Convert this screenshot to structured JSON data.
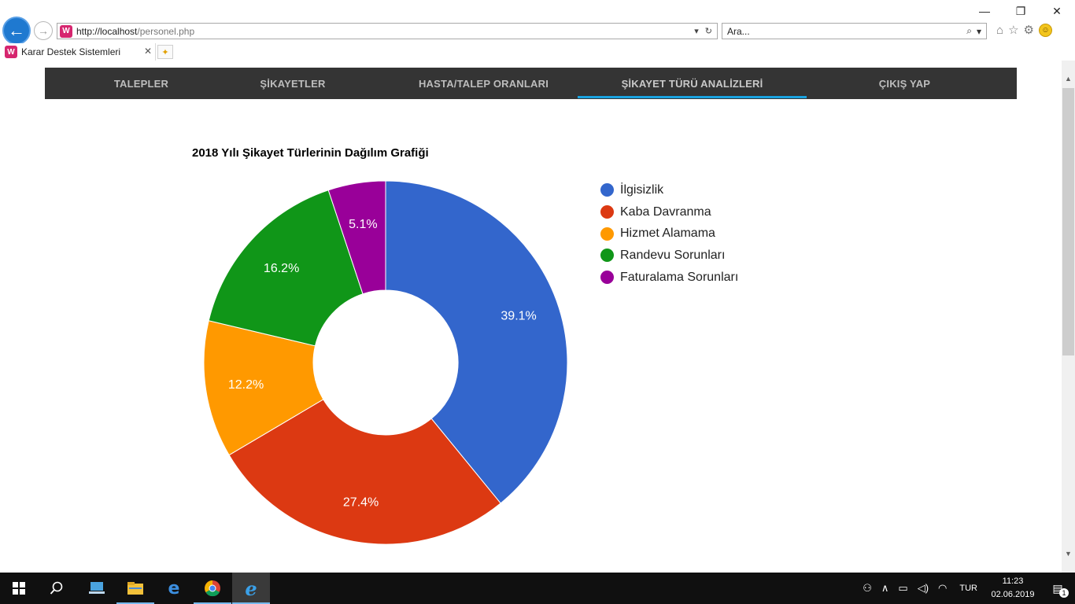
{
  "browser": {
    "address": {
      "host": "http://localhost",
      "path": "/personel.php",
      "favicon": "W"
    },
    "search": {
      "placeholder": "Ara..."
    },
    "tab": {
      "title": "Karar Destek Sistemleri",
      "close": "✕"
    },
    "window_controls": {
      "minimize": "—",
      "restore": "❐",
      "close": "✕"
    }
  },
  "nav": {
    "items": [
      {
        "label": "TALEPLER"
      },
      {
        "label": "ŞİKAYETLER"
      },
      {
        "label": "HASTA/TALEP ORANLARI"
      },
      {
        "label": "ŞİKAYET TÜRÜ ANALİZLERİ"
      },
      {
        "label": "ÇIKIŞ YAP"
      }
    ],
    "active_index": 3,
    "active_color": "#1aa3e0"
  },
  "chart_data": {
    "type": "pie",
    "donut": true,
    "title": "2018 Yılı Şikayet Türlerinin Dağılım Grafiği",
    "categories": [
      "İlgisizlik",
      "Kaba Davranma",
      "Hizmet Alamama",
      "Randevu Sorunları",
      "Faturalama Sorunları"
    ],
    "values": [
      39.1,
      27.4,
      12.2,
      16.2,
      5.1
    ],
    "labels": [
      "39.1%",
      "27.4%",
      "12.2%",
      "16.2%",
      "5.1%"
    ],
    "colors": [
      "#3366cc",
      "#dc3912",
      "#ff9900",
      "#109618",
      "#990099"
    ],
    "legend": "right"
  },
  "taskbar": {
    "clock": {
      "time": "11:23",
      "date": "02.06.2019"
    },
    "language": "TUR",
    "notification_count": "1"
  }
}
